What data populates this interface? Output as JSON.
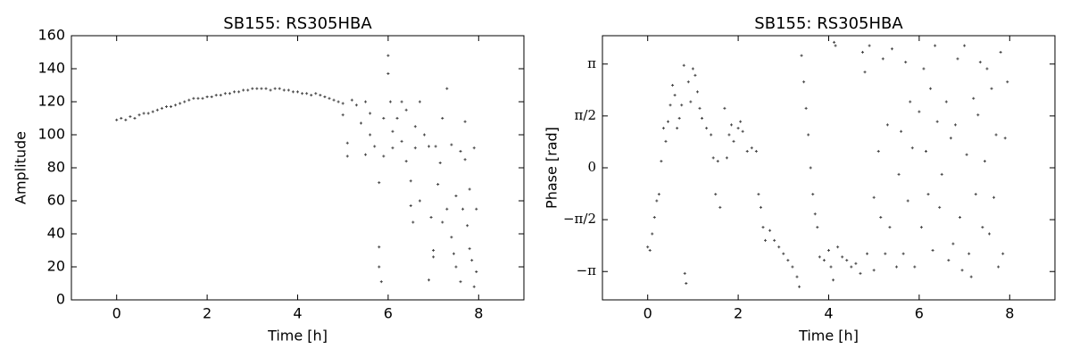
{
  "chart_data": [
    {
      "type": "scatter",
      "title": "SB155: RS305HBA",
      "xlabel": "Time [h]",
      "ylabel": "Amplitude",
      "color": "#444444",
      "xlim": [
        -1,
        9
      ],
      "ylim": [
        0,
        160
      ],
      "xticks": [
        0,
        2,
        4,
        6,
        8
      ],
      "yticks": [
        0,
        20,
        40,
        60,
        80,
        100,
        120,
        140,
        160
      ],
      "x": [
        0.0,
        0.1,
        0.2,
        0.3,
        0.4,
        0.5,
        0.6,
        0.7,
        0.8,
        0.9,
        1.0,
        1.1,
        1.2,
        1.3,
        1.4,
        1.5,
        1.6,
        1.7,
        1.8,
        1.9,
        2.0,
        2.1,
        2.2,
        2.3,
        2.4,
        2.5,
        2.6,
        2.7,
        2.8,
        2.9,
        3.0,
        3.1,
        3.2,
        3.3,
        3.4,
        3.5,
        3.6,
        3.7,
        3.8,
        3.9,
        4.0,
        4.1,
        4.2,
        4.3,
        4.4,
        4.5,
        4.6,
        4.7,
        4.8,
        4.9,
        5.0,
        5.0,
        5.1,
        5.1,
        5.2,
        5.3,
        5.4,
        5.5,
        5.5,
        5.6,
        5.6,
        5.7,
        5.8,
        5.8,
        5.8,
        5.85,
        5.9,
        5.9,
        6.0,
        6.0,
        6.05,
        6.1,
        6.1,
        6.2,
        6.3,
        6.3,
        6.4,
        6.4,
        6.5,
        6.5,
        6.55,
        6.6,
        6.6,
        6.7,
        6.7,
        6.8,
        6.9,
        6.9,
        6.95,
        7.0,
        7.0,
        7.05,
        7.1,
        7.15,
        7.2,
        7.2,
        7.3,
        7.3,
        7.4,
        7.4,
        7.45,
        7.5,
        7.5,
        7.6,
        7.6,
        7.65,
        7.7,
        7.7,
        7.75,
        7.8,
        7.8,
        7.85,
        7.9,
        7.9,
        7.95,
        7.95
      ],
      "values": [
        109,
        110,
        109,
        111,
        110,
        112,
        113,
        113,
        114,
        115,
        116,
        117,
        117,
        118,
        119,
        120,
        121,
        122,
        122,
        122,
        123,
        123,
        124,
        124,
        125,
        125,
        126,
        126,
        127,
        127,
        128,
        128,
        128,
        128,
        127,
        128,
        128,
        127,
        127,
        126,
        126,
        125,
        125,
        124,
        125,
        124,
        123,
        122,
        121,
        120,
        119,
        112,
        95,
        87,
        121,
        118,
        107,
        88,
        120,
        100,
        113,
        93,
        71,
        32,
        20,
        11,
        110,
        87,
        137,
        148,
        120,
        102,
        92,
        110,
        96,
        120,
        84,
        115,
        72,
        57,
        47,
        105,
        92,
        120,
        60,
        100,
        93,
        12,
        50,
        30,
        26,
        93,
        70,
        83,
        110,
        47,
        128,
        55,
        94,
        38,
        28,
        20,
        63,
        90,
        11,
        55,
        108,
        85,
        45,
        31,
        67,
        24,
        92,
        8,
        55,
        17
      ]
    },
    {
      "type": "scatter",
      "title": "SB155: RS305HBA",
      "xlabel": "Time [h]",
      "ylabel": "Phase [rad]",
      "color": "#444444",
      "xlim": [
        -1,
        9
      ],
      "ylim": [
        -4,
        4
      ],
      "xticks": [
        0,
        2,
        4,
        6,
        8
      ],
      "yticks": [
        {
          "value": -3.14159,
          "label": "−π"
        },
        {
          "value": -1.5708,
          "label": "−π/2"
        },
        {
          "value": 0,
          "label": "0"
        },
        {
          "value": 1.5708,
          "label": "π/2"
        },
        {
          "value": 3.14159,
          "label": "π"
        }
      ],
      "x": [
        0.0,
        0.05,
        0.1,
        0.15,
        0.2,
        0.25,
        0.3,
        0.35,
        0.4,
        0.45,
        0.5,
        0.55,
        0.6,
        0.65,
        0.7,
        0.75,
        0.8,
        0.82,
        0.85,
        0.9,
        0.95,
        1.0,
        1.05,
        1.1,
        1.15,
        1.2,
        1.3,
        1.4,
        1.45,
        1.5,
        1.55,
        1.6,
        1.7,
        1.75,
        1.8,
        1.85,
        1.9,
        2.0,
        2.05,
        2.1,
        2.2,
        2.3,
        2.4,
        2.45,
        2.5,
        2.55,
        2.6,
        2.7,
        2.8,
        2.9,
        3.0,
        3.1,
        3.2,
        3.3,
        3.35,
        3.4,
        3.45,
        3.5,
        3.55,
        3.6,
        3.65,
        3.7,
        3.75,
        3.8,
        3.9,
        4.0,
        4.05,
        4.1,
        4.12,
        4.15,
        4.2,
        4.3,
        4.4,
        4.5,
        4.6,
        4.7,
        4.75,
        4.8,
        4.85,
        4.9,
        5.0,
        5.0,
        5.1,
        5.15,
        5.2,
        5.25,
        5.3,
        5.35,
        5.4,
        5.5,
        5.55,
        5.6,
        5.65,
        5.7,
        5.75,
        5.8,
        5.85,
        5.9,
        6.0,
        6.05,
        6.1,
        6.15,
        6.2,
        6.25,
        6.3,
        6.35,
        6.4,
        6.45,
        6.5,
        6.6,
        6.65,
        6.7,
        6.75,
        6.8,
        6.85,
        6.9,
        6.95,
        7.0,
        7.05,
        7.1,
        7.15,
        7.2,
        7.25,
        7.3,
        7.35,
        7.4,
        7.45,
        7.5,
        7.55,
        7.6,
        7.65,
        7.7,
        7.75,
        7.8,
        7.85,
        7.9,
        7.95
      ],
      "values": [
        -2.4,
        -2.5,
        -2.0,
        -1.5,
        -1.0,
        -0.8,
        0.2,
        1.2,
        0.8,
        1.4,
        1.9,
        2.5,
        2.2,
        1.2,
        1.5,
        1.9,
        3.1,
        -3.2,
        -3.5,
        2.6,
        2.0,
        3.0,
        2.8,
        2.3,
        1.8,
        1.5,
        1.2,
        1.0,
        0.3,
        -0.8,
        0.2,
        -1.2,
        1.8,
        0.3,
        1.0,
        1.3,
        0.8,
        1.2,
        1.4,
        1.1,
        0.5,
        0.6,
        0.5,
        -0.8,
        -1.2,
        -1.8,
        -2.2,
        -1.9,
        -2.2,
        -2.4,
        -2.6,
        -2.8,
        -3.0,
        -3.3,
        -3.6,
        3.4,
        2.6,
        1.8,
        1.0,
        0.0,
        -0.8,
        -1.4,
        -1.8,
        -2.7,
        -2.8,
        -2.5,
        -3.0,
        -3.4,
        3.8,
        3.7,
        -2.4,
        -2.7,
        -2.8,
        -3.0,
        -2.9,
        -3.2,
        3.5,
        2.9,
        -2.6,
        3.7,
        -3.1,
        -0.9,
        0.5,
        -1.5,
        3.3,
        -2.6,
        1.3,
        -1.8,
        3.6,
        -3.0,
        -0.2,
        1.1,
        -2.6,
        3.2,
        -1.0,
        2.0,
        0.6,
        -3.0,
        1.7,
        -1.8,
        3.0,
        0.5,
        -0.8,
        2.4,
        -2.5,
        3.7,
        1.4,
        -1.2,
        -0.2,
        2.0,
        -2.8,
        0.9,
        -2.3,
        1.3,
        3.3,
        -1.5,
        -3.1,
        3.7,
        0.4,
        -2.6,
        -3.3,
        2.1,
        -0.8,
        1.6,
        3.2,
        -1.8,
        0.2,
        3.0,
        -2.0,
        2.4,
        -0.9,
        1.0,
        -3.0,
        3.5,
        -2.6,
        0.9,
        2.6
      ]
    }
  ]
}
